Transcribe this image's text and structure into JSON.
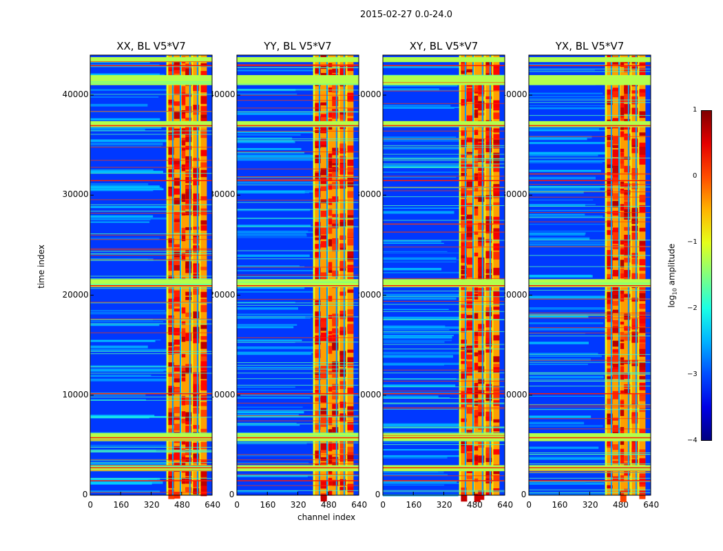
{
  "chart_data": {
    "type": "heatmap",
    "title": "2015-02-27 0.0-24.0",
    "xlabel": "channel index",
    "ylabel": "time index",
    "xlim": [
      0,
      640
    ],
    "ylim": [
      0,
      44000
    ],
    "xticks": [
      0,
      160,
      320,
      480,
      640
    ],
    "yticks": [
      0,
      10000,
      20000,
      30000,
      40000
    ],
    "panels": [
      {
        "title": "XX, BL V5*V7"
      },
      {
        "title": "YY, BL V5*V7"
      },
      {
        "title": "XY, BL V5*V7"
      },
      {
        "title": "YX, BL V5*V7"
      }
    ],
    "colorbar": {
      "label": "log",
      "label_sub": "10",
      "label_rest": " amplitude",
      "ticks": [
        "1",
        "0",
        "−1",
        "−2",
        "−3",
        "−4"
      ],
      "range": [
        -4,
        1
      ],
      "colormap": "jet"
    },
    "rfi_band_channels": [
      400,
      600
    ],
    "bright_channel_columns": [
      410,
      440,
      480,
      500,
      540,
      580
    ],
    "flagged_time_rows": [
      1500,
      2800,
      5800,
      10200,
      21000,
      31500,
      37000,
      43000
    ],
    "green_time_bands": [
      [
        2400,
        3000
      ],
      [
        5400,
        6200
      ],
      [
        20800,
        21600
      ],
      [
        36800,
        37400
      ],
      [
        41000,
        42000
      ],
      [
        43300,
        43800
      ]
    ]
  }
}
